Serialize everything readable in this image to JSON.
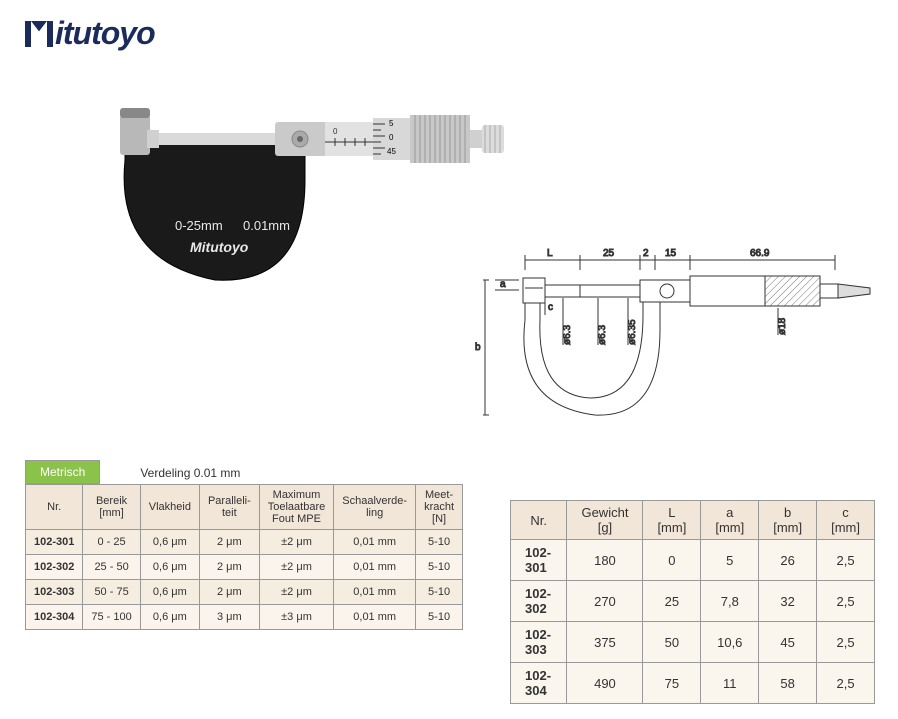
{
  "logo_text": "itutoyo",
  "tab_label": "Metrisch",
  "verdeling_label": "Verdeling 0.01 mm",
  "photo": {
    "range_label": "0-25mm",
    "resolution_label": "0.01mm",
    "brand_label": "Mitutoyo",
    "thimble_marks": [
      "5",
      "0",
      "45"
    ]
  },
  "diagram": {
    "dims": {
      "L": "L",
      "d25": "25",
      "d2": "2",
      "d15": "15",
      "d669": "66.9"
    },
    "vdims": {
      "a": "a",
      "b": "b",
      "c": "c"
    },
    "dias": {
      "d63a": "ø6.3",
      "d63b": "ø6.3",
      "d635": "ø6.35",
      "d18": "ø18"
    }
  },
  "table1": {
    "headers": [
      "Nr.",
      "Bereik\n[mm]",
      "Vlakheid",
      "Paralleli-\nteit",
      "Maximum\nToelaatbare\nFout MPE",
      "Schaalverde-\nling",
      "Meet-\nkracht\n[N]"
    ],
    "rows": [
      [
        "102-301",
        "0 - 25",
        "0,6 μm",
        "2 μm",
        "±2 μm",
        "0,01 mm",
        "5-10"
      ],
      [
        "102-302",
        "25 - 50",
        "0,6 μm",
        "2 μm",
        "±2 μm",
        "0,01 mm",
        "5-10"
      ],
      [
        "102-303",
        "50 - 75",
        "0,6 μm",
        "2 μm",
        "±2 μm",
        "0,01 mm",
        "5-10"
      ],
      [
        "102-304",
        "75 - 100",
        "0,6 μm",
        "3 μm",
        "±3 μm",
        "0,01 mm",
        "5-10"
      ]
    ]
  },
  "table2": {
    "headers": [
      "Nr.",
      "Gewicht\n[g]",
      "L\n[mm]",
      "a\n[mm]",
      "b\n[mm]",
      "c\n[mm]"
    ],
    "rows": [
      [
        "102-301",
        "180",
        "0",
        "5",
        "26",
        "2,5"
      ],
      [
        "102-302",
        "270",
        "25",
        "7,8",
        "32",
        "2,5"
      ],
      [
        "102-303",
        "375",
        "50",
        "10,6",
        "45",
        "2,5"
      ],
      [
        "102-304",
        "490",
        "75",
        "11",
        "58",
        "2,5"
      ]
    ]
  }
}
